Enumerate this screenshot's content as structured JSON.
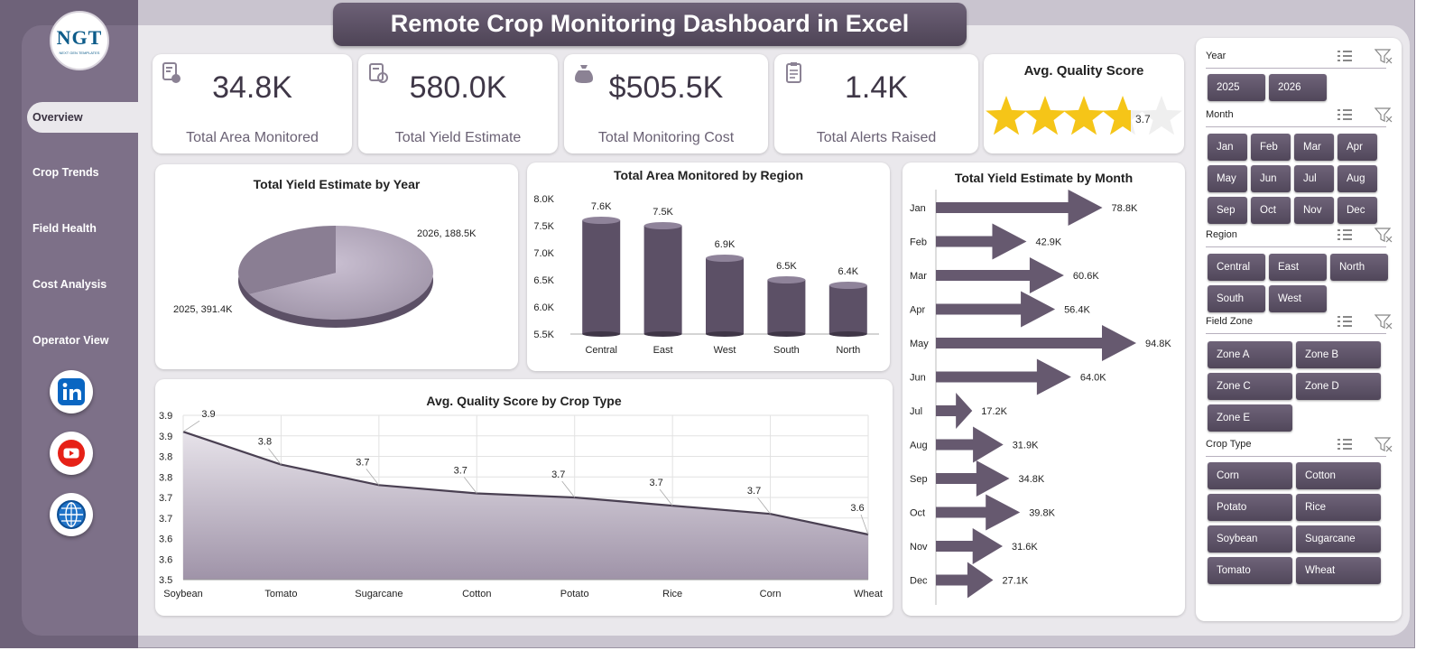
{
  "header": {
    "title": "Remote Crop Monitoring Dashboard in Excel"
  },
  "logo": {
    "text": "NGT",
    "tagline": "NEXT GEN TEMPLATES"
  },
  "nav": {
    "items": [
      {
        "label": "Overview",
        "active": true
      },
      {
        "label": "Crop Trends",
        "active": false
      },
      {
        "label": "Field Health",
        "active": false
      },
      {
        "label": "Cost Analysis",
        "active": false
      },
      {
        "label": "Operator View",
        "active": false
      }
    ],
    "social": [
      "linkedin-icon",
      "youtube-icon",
      "globe-icon"
    ]
  },
  "kpis": [
    {
      "value": "34.8K",
      "label": "Total Area Monitored",
      "icon": "area-icon"
    },
    {
      "value": "580.0K",
      "label": "Total Yield Estimate",
      "icon": "yield-icon"
    },
    {
      "value": "$505.5K",
      "label": "Total Monitoring Cost",
      "icon": "money-bag-icon"
    },
    {
      "value": "1.4K",
      "label": "Total Alerts Raised",
      "icon": "clipboard-icon"
    }
  ],
  "quality": {
    "title": "Avg. Quality Score",
    "score": "3.7",
    "max_stars": 5
  },
  "colors": {
    "accent": "#6e6279",
    "accent_dark": "#4e4456",
    "star": "#f5c518",
    "bar": "#5c5066"
  },
  "chart_data": [
    {
      "type": "pie",
      "title": "Total Yield Estimate by Year",
      "categories": [
        "2025",
        "2026"
      ],
      "values": [
        391.4,
        188.5
      ],
      "data_labels": [
        "2025, 391.4K",
        "2026, 188.5K"
      ]
    },
    {
      "type": "bar",
      "title": "Total Area Monitored by Region",
      "categories": [
        "Central",
        "East",
        "West",
        "South",
        "North"
      ],
      "values": [
        7.6,
        7.5,
        6.9,
        6.5,
        6.4
      ],
      "data_labels": [
        "7.6K",
        "7.5K",
        "6.9K",
        "6.5K",
        "6.4K"
      ],
      "ylim": [
        5.5,
        8.0
      ],
      "yticks": [
        "8.0K",
        "7.5K",
        "7.0K",
        "6.5K",
        "6.0K",
        "5.5K"
      ]
    },
    {
      "type": "bar",
      "orientation": "horizontal",
      "title": "Total Yield Estimate by Month",
      "categories": [
        "Jan",
        "Feb",
        "Mar",
        "Apr",
        "May",
        "Jun",
        "Jul",
        "Aug",
        "Sep",
        "Oct",
        "Nov",
        "Dec"
      ],
      "values": [
        78.8,
        42.9,
        60.6,
        56.4,
        94.8,
        64.0,
        17.2,
        31.9,
        34.8,
        39.8,
        31.6,
        27.1
      ],
      "data_labels": [
        "78.8K",
        "42.9K",
        "60.6K",
        "56.4K",
        "94.8K",
        "64.0K",
        "17.2K",
        "31.9K",
        "34.8K",
        "39.8K",
        "31.6K",
        "27.1K"
      ]
    },
    {
      "type": "area",
      "title": "Avg. Quality Score by Crop Type",
      "categories": [
        "Soybean",
        "Tomato",
        "Sugarcane",
        "Cotton",
        "Potato",
        "Rice",
        "Corn",
        "Wheat"
      ],
      "values": [
        3.86,
        3.78,
        3.73,
        3.71,
        3.7,
        3.68,
        3.66,
        3.61
      ],
      "data_labels": [
        "3.9",
        "3.8",
        "3.7",
        "3.7",
        "3.7",
        "3.7",
        "3.7",
        "3.6"
      ],
      "ylim": [
        3.5,
        3.9
      ],
      "yticks": [
        "3.9",
        "3.9",
        "3.8",
        "3.8",
        "3.7",
        "3.7",
        "3.6",
        "3.6",
        "3.5"
      ],
      "grid": true
    }
  ],
  "slicers": [
    {
      "title": "Year",
      "options": [
        "2025",
        "2026"
      ]
    },
    {
      "title": "Month",
      "options": [
        "Jan",
        "Feb",
        "Mar",
        "Apr",
        "May",
        "Jun",
        "Jul",
        "Aug",
        "Sep",
        "Oct",
        "Nov",
        "Dec"
      ]
    },
    {
      "title": "Region",
      "options": [
        "Central",
        "East",
        "North",
        "South",
        "West"
      ]
    },
    {
      "title": "Field Zone",
      "options": [
        "Zone A",
        "Zone B",
        "Zone C",
        "Zone D",
        "Zone E"
      ]
    },
    {
      "title": "Crop Type",
      "options": [
        "Corn",
        "Cotton",
        "Potato",
        "Rice",
        "Soybean",
        "Sugarcane",
        "Tomato",
        "Wheat"
      ]
    }
  ]
}
